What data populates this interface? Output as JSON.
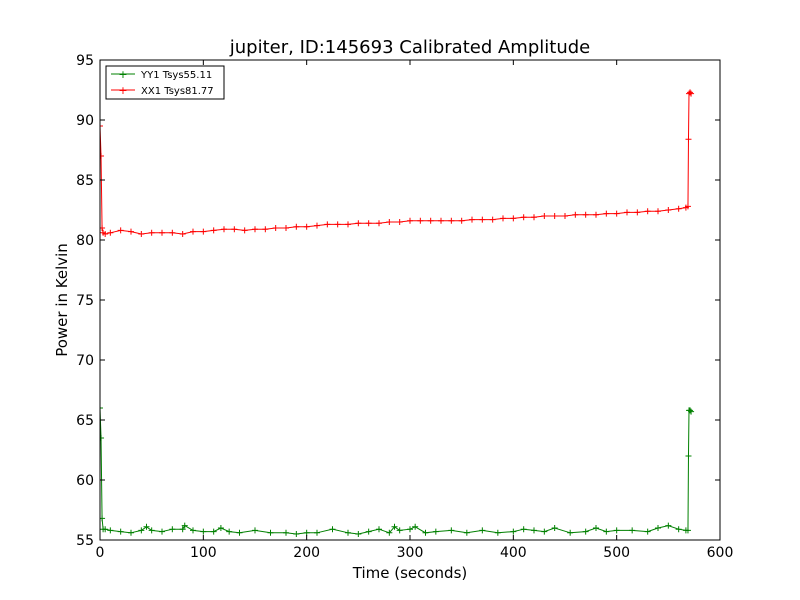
{
  "chart_data": {
    "type": "line",
    "title": "jupiter, ID:145693 Calibrated Amplitude",
    "xlabel": "Time (seconds)",
    "ylabel": "Power in Kelvin",
    "xlim": [
      0,
      600
    ],
    "ylim": [
      55,
      95
    ],
    "xticks": [
      0,
      100,
      200,
      300,
      400,
      500,
      600
    ],
    "yticks": [
      55,
      60,
      65,
      70,
      75,
      80,
      85,
      90,
      95
    ],
    "grid": false,
    "legend_position": "top-left",
    "series": [
      {
        "name": "YY1 Tsys55.11",
        "color": "#008000",
        "marker": "+",
        "x": [
          0,
          1,
          2,
          3,
          5,
          10,
          20,
          30,
          40,
          45,
          50,
          60,
          70,
          80,
          82,
          90,
          100,
          110,
          117,
          125,
          135,
          150,
          165,
          180,
          190,
          200,
          210,
          225,
          240,
          250,
          260,
          270,
          280,
          285,
          290,
          300,
          305,
          315,
          325,
          340,
          355,
          370,
          385,
          400,
          410,
          420,
          430,
          440,
          455,
          470,
          480,
          490,
          500,
          515,
          530,
          540,
          550,
          560,
          567,
          569,
          569.5,
          570,
          571,
          572
        ],
        "values": [
          66.0,
          63.5,
          56.8,
          55.9,
          55.9,
          55.8,
          55.7,
          55.6,
          55.8,
          56.1,
          55.8,
          55.7,
          55.9,
          55.9,
          56.2,
          55.8,
          55.7,
          55.7,
          56.0,
          55.7,
          55.6,
          55.8,
          55.6,
          55.6,
          55.5,
          55.6,
          55.6,
          55.9,
          55.6,
          55.5,
          55.7,
          55.9,
          55.6,
          56.1,
          55.8,
          55.9,
          56.1,
          55.6,
          55.7,
          55.8,
          55.6,
          55.8,
          55.6,
          55.7,
          55.9,
          55.8,
          55.7,
          56.0,
          55.6,
          55.7,
          56.0,
          55.7,
          55.8,
          55.8,
          55.7,
          56.0,
          56.2,
          55.9,
          55.8,
          55.8,
          62.0,
          65.8,
          65.8,
          65.7
        ]
      },
      {
        "name": "XX1 Tsys81.77",
        "color": "#ff0000",
        "marker": "+",
        "x": [
          0,
          1,
          2,
          3,
          5,
          10,
          20,
          30,
          40,
          50,
          60,
          70,
          80,
          90,
          100,
          110,
          120,
          130,
          140,
          150,
          160,
          170,
          180,
          190,
          200,
          210,
          220,
          230,
          240,
          250,
          260,
          270,
          280,
          290,
          300,
          310,
          320,
          330,
          340,
          350,
          360,
          370,
          380,
          390,
          400,
          410,
          420,
          430,
          440,
          450,
          460,
          470,
          480,
          490,
          500,
          510,
          520,
          530,
          540,
          550,
          560,
          567,
          569,
          569.5,
          570,
          571,
          572
        ],
        "values": [
          89.5,
          87.0,
          81.0,
          80.6,
          80.5,
          80.6,
          80.8,
          80.7,
          80.5,
          80.6,
          80.6,
          80.6,
          80.5,
          80.7,
          80.7,
          80.8,
          80.9,
          80.9,
          80.8,
          80.9,
          80.9,
          81.0,
          81.0,
          81.1,
          81.1,
          81.2,
          81.3,
          81.3,
          81.3,
          81.4,
          81.4,
          81.4,
          81.5,
          81.5,
          81.6,
          81.6,
          81.6,
          81.6,
          81.6,
          81.6,
          81.7,
          81.7,
          81.7,
          81.8,
          81.8,
          81.9,
          81.9,
          82.0,
          82.0,
          82.0,
          82.1,
          82.1,
          82.1,
          82.2,
          82.2,
          82.3,
          82.3,
          82.4,
          82.4,
          82.5,
          82.6,
          82.7,
          82.8,
          88.4,
          92.2,
          92.3,
          92.2
        ]
      }
    ]
  }
}
